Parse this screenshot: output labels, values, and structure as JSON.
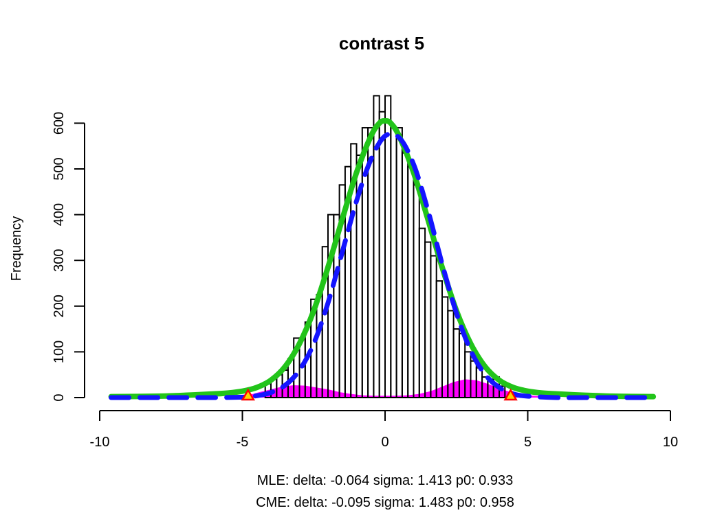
{
  "chart_data": {
    "type": "bar",
    "title": "contrast 5",
    "xlabel": "",
    "ylabel": "Frequency",
    "xlim": [
      -10,
      10
    ],
    "ylim": [
      0,
      660
    ],
    "x_ticks": [
      "-10",
      "-5",
      "0",
      "5",
      "10"
    ],
    "y_ticks": [
      "0",
      "100",
      "200",
      "300",
      "400",
      "500",
      "600"
    ],
    "grid": false,
    "histogram": {
      "bin_width": 0.2,
      "bin_centers": [
        -4.1,
        -3.9,
        -3.7,
        -3.5,
        -3.3,
        -3.1,
        -2.9,
        -2.7,
        -2.5,
        -2.3,
        -2.1,
        -1.9,
        -1.7,
        -1.5,
        -1.3,
        -1.1,
        -0.9,
        -0.7,
        -0.5,
        -0.3,
        -0.1,
        0.1,
        0.3,
        0.5,
        0.7,
        0.9,
        1.1,
        1.3,
        1.5,
        1.7,
        1.9,
        2.1,
        2.3,
        2.5,
        2.7,
        2.9,
        3.1,
        3.3,
        3.5,
        3.7,
        3.9,
        4.1
      ],
      "frequencies": [
        30,
        40,
        50,
        60,
        85,
        130,
        130,
        165,
        215,
        225,
        330,
        400,
        400,
        465,
        505,
        555,
        530,
        590,
        590,
        660,
        625,
        660,
        590,
        590,
        535,
        505,
        465,
        370,
        340,
        310,
        255,
        220,
        190,
        150,
        140,
        100,
        80,
        65,
        45,
        40,
        45,
        25
      ]
    },
    "null_density_fill": {
      "color": "#ff00ff",
      "x": [
        -4.8,
        -4.4,
        -4.0,
        -3.6,
        -3.2,
        -2.8,
        -2.4,
        -2.0,
        -1.6,
        -1.2,
        -0.8,
        -0.4,
        0.0,
        0.4,
        0.8,
        1.2,
        1.6,
        2.0,
        2.4,
        2.8,
        3.2,
        3.6,
        4.0,
        4.4,
        4.8,
        5.2,
        5.6
      ],
      "y": [
        5,
        12,
        18,
        24,
        27,
        26,
        22,
        18,
        12,
        8,
        5,
        4,
        4,
        4,
        5,
        8,
        14,
        24,
        34,
        40,
        38,
        30,
        20,
        12,
        7,
        4,
        2
      ]
    },
    "series": [
      {
        "name": "CME",
        "color": "#22c41a",
        "style": "solid",
        "x": [
          -9.6,
          -8,
          -7,
          -6,
          -5.5,
          -5,
          -4.5,
          -4,
          -3.5,
          -3,
          -2.5,
          -2,
          -1.5,
          -1,
          -0.5,
          -0.2,
          0,
          0.2,
          0.5,
          1,
          1.5,
          2,
          2.5,
          3,
          3.5,
          4,
          4.5,
          5,
          5.5,
          6,
          7,
          8,
          9.4
        ],
        "y": [
          2,
          3,
          5,
          8,
          10,
          14,
          22,
          38,
          68,
          118,
          190,
          285,
          390,
          492,
          571,
          600,
          605,
          600,
          571,
          492,
          390,
          285,
          190,
          118,
          68,
          38,
          22,
          14,
          10,
          8,
          5,
          3,
          2
        ]
      },
      {
        "name": "MLE",
        "color": "#1414ff",
        "style": "dashed",
        "x": [
          -9.6,
          -7,
          -6,
          -5,
          -4.5,
          -4,
          -3.5,
          -3,
          -2.5,
          -2,
          -1.5,
          -1,
          -0.5,
          0,
          0.5,
          1,
          1.5,
          2,
          2.5,
          3,
          3.5,
          4,
          4.5,
          5,
          6,
          7,
          9.4
        ],
        "y": [
          0,
          0,
          0,
          1,
          4,
          11,
          27,
          60,
          118,
          207,
          318,
          430,
          520,
          572,
          568,
          510,
          410,
          292,
          185,
          103,
          51,
          22,
          8,
          3,
          0,
          0,
          0
        ]
      }
    ],
    "markers": {
      "color": "#ff0000",
      "fill": "#ffd400",
      "x": [
        -4.8,
        4.4
      ],
      "y": [
        0,
        0
      ]
    },
    "annotations": [
      "MLE: delta: -0.064 sigma: 1.413 p0: 0.933",
      "CME: delta: -0.095 sigma: 1.483 p0: 0.958"
    ]
  }
}
